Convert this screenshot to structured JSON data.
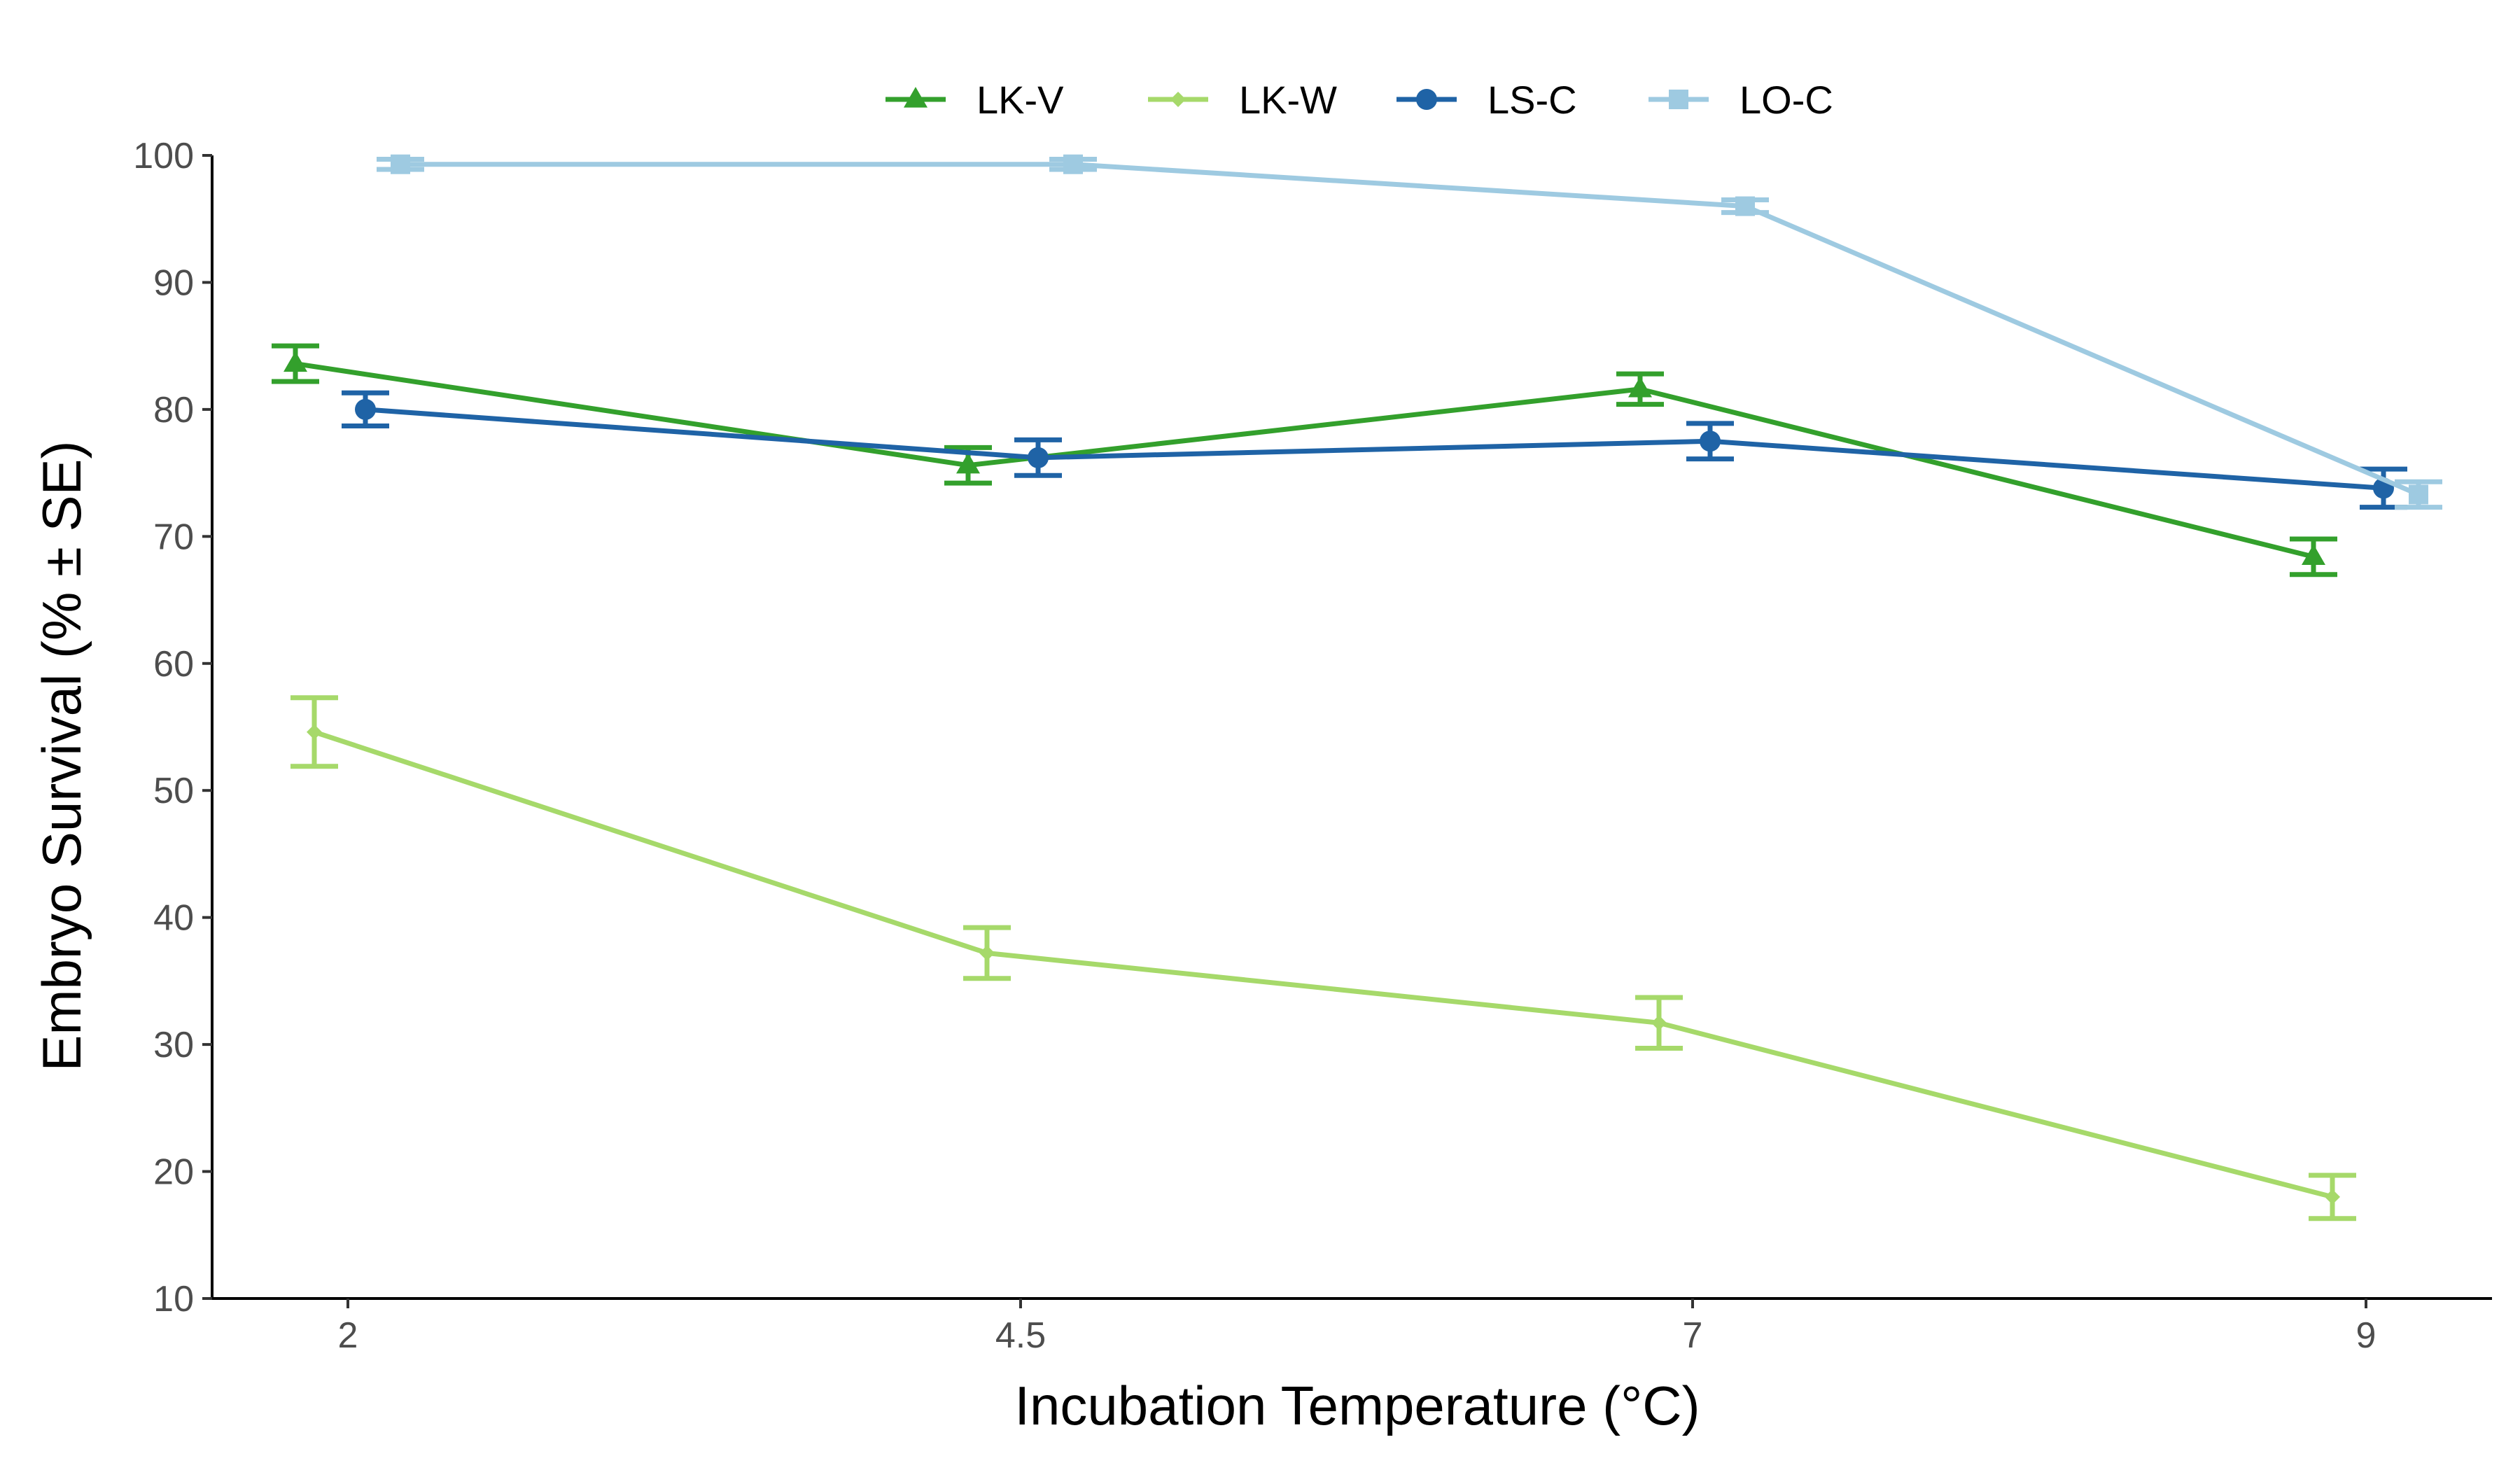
{
  "chart_data": {
    "type": "line",
    "xlabel": "Incubation Temperature (°C)",
    "ylabel": "Embryo Survival (% ± SE)",
    "x": [
      2,
      4.5,
      7,
      9
    ],
    "x_tick_labels": [
      "2",
      "4.5",
      "7",
      "9"
    ],
    "ylim": [
      10,
      100
    ],
    "y_ticks": [
      10,
      20,
      30,
      40,
      50,
      60,
      70,
      80,
      90,
      100
    ],
    "grid": false,
    "legend_position": "top",
    "series": [
      {
        "name": "LK-V",
        "marker": "triangle",
        "color": "#33a02c",
        "values": [
          83.6,
          75.6,
          81.6,
          68.4
        ],
        "se": [
          1.4,
          1.4,
          1.2,
          1.4
        ]
      },
      {
        "name": "LK-W",
        "marker": "diamond",
        "color": "#a6d96a",
        "values": [
          54.6,
          37.2,
          31.7,
          18.0
        ],
        "se": [
          2.7,
          2.0,
          2.0,
          1.7
        ]
      },
      {
        "name": "LS-C",
        "marker": "circle",
        "color": "#1f63a6",
        "values": [
          80.0,
          76.2,
          77.5,
          73.8
        ],
        "se": [
          1.3,
          1.4,
          1.4,
          1.5
        ]
      },
      {
        "name": "LO-C",
        "marker": "square",
        "color": "#9ecae1",
        "values": [
          99.3,
          99.3,
          96.0,
          73.3
        ],
        "se": [
          0.4,
          0.4,
          0.5,
          1.0
        ]
      }
    ]
  }
}
